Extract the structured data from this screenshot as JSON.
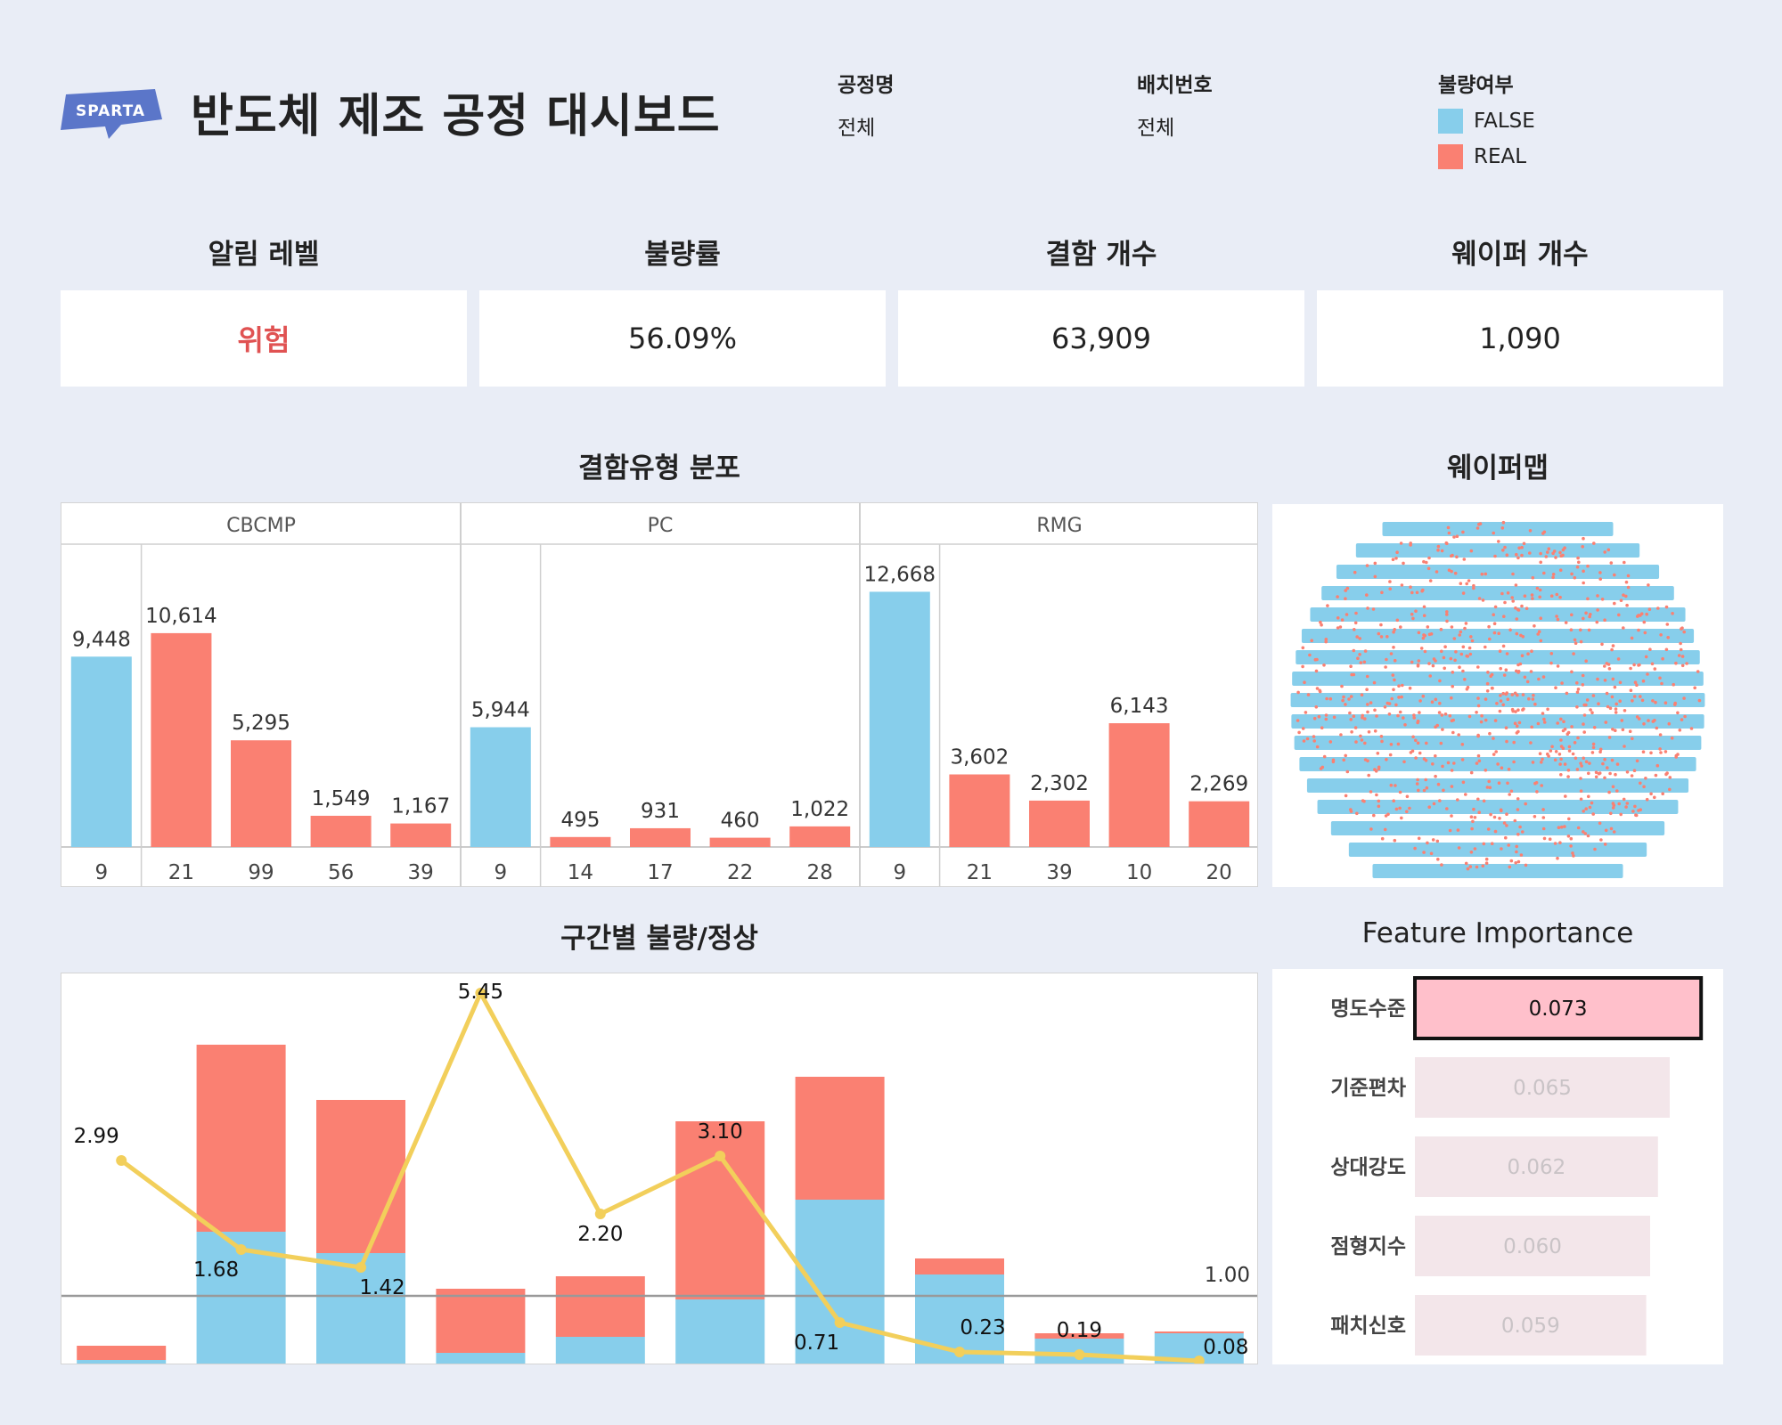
{
  "header": {
    "title": "반도체 제조 공정 대시보드",
    "logo_text": "SPARTA",
    "filters": [
      {
        "label": "공정명",
        "value": "전체"
      },
      {
        "label": "배치번호",
        "value": "전체"
      }
    ],
    "legend": {
      "title": "불량여부",
      "items": [
        {
          "label": "FALSE",
          "color": "#87ceeb"
        },
        {
          "label": "REAL",
          "color": "#fa8072"
        }
      ]
    }
  },
  "kpis": [
    {
      "title": "알림 레벨",
      "value": "위험",
      "color": "#e05252"
    },
    {
      "title": "불량률",
      "value": "56.09%",
      "color": "#222222"
    },
    {
      "title": "결함 개수",
      "value": "63,909",
      "color": "#222222"
    },
    {
      "title": "웨이퍼 개수",
      "value": "1,090",
      "color": "#222222"
    }
  ],
  "sections": {
    "defect_distribution": "결함유형 분포",
    "wafer_map": "웨이퍼맵",
    "interval": "구간별 불량/정상",
    "feature_importance": "Feature Importance"
  },
  "colors": {
    "false": "#87ceeb",
    "real": "#fa8072",
    "line": "#f2cf5b",
    "highlight": "#ffc0cb"
  },
  "chart_data": [
    {
      "type": "bar",
      "title": "결함유형 분포",
      "groups": [
        {
          "name": "CBCMP",
          "categories": [
            "9",
            "21",
            "99",
            "56",
            "39"
          ],
          "values": [
            9448,
            10614,
            5295,
            1549,
            1167
          ],
          "status": [
            "FALSE",
            "REAL",
            "REAL",
            "REAL",
            "REAL"
          ],
          "labels": [
            "9,448",
            "10,614",
            "5,295",
            "1,549",
            "1,167"
          ]
        },
        {
          "name": "PC",
          "categories": [
            "9",
            "14",
            "17",
            "22",
            "28"
          ],
          "values": [
            5944,
            495,
            931,
            460,
            1022
          ],
          "status": [
            "FALSE",
            "REAL",
            "REAL",
            "REAL",
            "REAL"
          ],
          "labels": [
            "5,944",
            "495",
            "931",
            "460",
            "1,022"
          ]
        },
        {
          "name": "RMG",
          "categories": [
            "9",
            "21",
            "39",
            "10",
            "20"
          ],
          "values": [
            12668,
            3602,
            2302,
            6143,
            2269
          ],
          "status": [
            "FALSE",
            "REAL",
            "REAL",
            "REAL",
            "REAL"
          ],
          "labels": [
            "12,668",
            "3,602",
            "2,302",
            "6,143",
            "2,269"
          ]
        }
      ],
      "ylim": [
        0,
        14500
      ]
    },
    {
      "type": "bar",
      "title": "구간별 불량/정상",
      "stacked": true,
      "series": [
        {
          "name": "FALSE",
          "values": [
            20,
            740,
            620,
            60,
            150,
            360,
            920,
            500,
            140,
            170
          ]
        },
        {
          "name": "REAL",
          "values": [
            80,
            1050,
            860,
            360,
            340,
            1000,
            690,
            90,
            30,
            10
          ]
        }
      ],
      "line": {
        "values": [
          2.99,
          1.68,
          1.42,
          5.45,
          2.2,
          3.1,
          0.71,
          0.23,
          0.19,
          0.08
        ],
        "labels": [
          "2.99",
          "1.68",
          "1.42",
          "5.45",
          "2.20",
          "3.10",
          "0.71",
          "0.23",
          "0.19",
          "0.08"
        ]
      },
      "reference_line": {
        "value": 1.0,
        "label": "1.00"
      },
      "ylim": [
        0,
        2100
      ]
    },
    {
      "type": "bar",
      "title": "Feature Importance",
      "categories": [
        "명도수준",
        "기준편차",
        "상대강도",
        "점형지수",
        "패치신호"
      ],
      "values": [
        0.073,
        0.065,
        0.062,
        0.06,
        0.059
      ],
      "labels": [
        "0.073",
        "0.065",
        "0.062",
        "0.060",
        "0.059"
      ]
    }
  ]
}
